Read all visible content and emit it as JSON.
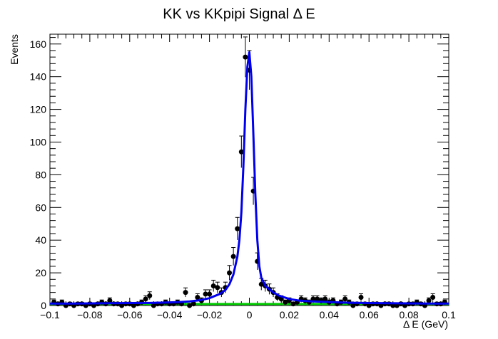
{
  "chart_data": {
    "type": "scatter",
    "title": "KK vs KKpipi Signal Δ E",
    "xlabel": "Δ E (GeV)",
    "ylabel": "Events",
    "xlim": [
      -0.1,
      0.1
    ],
    "ylim": [
      0,
      166
    ],
    "x_ticks": [
      -0.1,
      -0.08,
      -0.06,
      -0.04,
      -0.02,
      0,
      0.02,
      0.04,
      0.06,
      0.08,
      0.1
    ],
    "x_tick_labels": [
      "−0.1",
      "−0.08",
      "−0.06",
      "−0.04",
      "−0.02",
      "0",
      "0.02",
      "0.04",
      "0.06",
      "0.08",
      "0.1"
    ],
    "y_ticks": [
      0,
      20,
      40,
      60,
      80,
      100,
      120,
      140,
      160
    ],
    "y_tick_labels": [
      "0",
      "20",
      "40",
      "60",
      "80",
      "100",
      "120",
      "140",
      "160"
    ],
    "grid": false,
    "series": [
      {
        "kind": "data-points-with-error-bars",
        "color": "#000000",
        "x": [
          -0.098,
          -0.096,
          -0.094,
          -0.092,
          -0.09,
          -0.088,
          -0.086,
          -0.084,
          -0.082,
          -0.08,
          -0.078,
          -0.076,
          -0.074,
          -0.072,
          -0.07,
          -0.068,
          -0.066,
          -0.064,
          -0.062,
          -0.06,
          -0.058,
          -0.056,
          -0.054,
          -0.052,
          -0.05,
          -0.048,
          -0.046,
          -0.044,
          -0.042,
          -0.04,
          -0.038,
          -0.036,
          -0.034,
          -0.032,
          -0.03,
          -0.028,
          -0.026,
          -0.024,
          -0.022,
          -0.02,
          -0.018,
          -0.016,
          -0.014,
          -0.012,
          -0.01,
          -0.008,
          -0.006,
          -0.004,
          -0.002,
          0.0,
          0.002,
          0.004,
          0.006,
          0.008,
          0.01,
          0.012,
          0.014,
          0.016,
          0.018,
          0.02,
          0.022,
          0.024,
          0.026,
          0.028,
          0.03,
          0.032,
          0.034,
          0.036,
          0.038,
          0.04,
          0.042,
          0.044,
          0.046,
          0.048,
          0.05,
          0.052,
          0.054,
          0.056,
          0.058,
          0.06,
          0.062,
          0.064,
          0.066,
          0.068,
          0.07,
          0.072,
          0.074,
          0.076,
          0.078,
          0.08,
          0.082,
          0.084,
          0.086,
          0.088,
          0.09,
          0.092,
          0.094,
          0.096,
          0.098
        ],
        "y": [
          2,
          1,
          2,
          0,
          1,
          0,
          1,
          1,
          0,
          1,
          0,
          1,
          2,
          1,
          3,
          1,
          1,
          0,
          1,
          1,
          0,
          1,
          2,
          4,
          6,
          0,
          1,
          1,
          2,
          1,
          1,
          2,
          1,
          8,
          0,
          1,
          5,
          3,
          7,
          7,
          12,
          11,
          8,
          11,
          20,
          30,
          47,
          94,
          152,
          144,
          70,
          27,
          13,
          12,
          10,
          8,
          5,
          4,
          2,
          3,
          1,
          2,
          4,
          3,
          2,
          4,
          4,
          3,
          4,
          2,
          3,
          1,
          2,
          4,
          2,
          0,
          1,
          5,
          1,
          0,
          1,
          1,
          0,
          1,
          1,
          0,
          0,
          1,
          0,
          1,
          1,
          2,
          1,
          0,
          3,
          5,
          1,
          1,
          2
        ],
        "err": [
          1.4,
          1.0,
          1.4,
          1.0,
          1.0,
          1.0,
          1.0,
          1.0,
          1.0,
          1.0,
          1.0,
          1.0,
          1.4,
          1.0,
          1.7,
          1.0,
          1.0,
          1.0,
          1.0,
          1.0,
          1.0,
          1.0,
          1.4,
          2.0,
          2.4,
          1.0,
          1.0,
          1.0,
          1.4,
          1.0,
          1.0,
          1.4,
          1.0,
          2.8,
          1.0,
          1.0,
          2.2,
          1.7,
          2.6,
          2.6,
          3.5,
          3.3,
          2.8,
          3.3,
          4.5,
          5.5,
          6.9,
          9.7,
          12.3,
          12.0,
          8.4,
          5.2,
          3.6,
          3.5,
          3.2,
          2.8,
          2.2,
          2.0,
          1.4,
          1.7,
          1.0,
          1.4,
          2.0,
          1.7,
          1.4,
          2.0,
          2.0,
          1.7,
          2.0,
          1.4,
          1.7,
          1.0,
          1.4,
          2.0,
          1.4,
          1.0,
          1.0,
          2.2,
          1.0,
          1.0,
          1.0,
          1.0,
          1.0,
          1.0,
          1.0,
          1.0,
          1.0,
          1.0,
          1.0,
          1.0,
          1.0,
          1.4,
          1.0,
          1.0,
          1.7,
          2.2,
          1.0,
          1.0,
          1.4
        ]
      },
      {
        "kind": "fit-total",
        "color": "#0000ee",
        "x": [
          -0.1,
          -0.09,
          -0.08,
          -0.07,
          -0.06,
          -0.05,
          -0.04,
          -0.035,
          -0.03,
          -0.025,
          -0.02,
          -0.015,
          -0.012,
          -0.01,
          -0.008,
          -0.006,
          -0.005,
          -0.004,
          -0.003,
          -0.002,
          -0.001,
          0,
          0.001,
          0.002,
          0.003,
          0.004,
          0.005,
          0.006,
          0.008,
          0.01,
          0.012,
          0.015,
          0.02,
          0.025,
          0.03,
          0.04,
          0.05,
          0.06,
          0.07,
          0.08,
          0.09,
          0.1
        ],
        "y": [
          1.2,
          1.2,
          1.3,
          1.4,
          1.5,
          1.6,
          1.9,
          2.1,
          2.5,
          3.2,
          4.5,
          7,
          9.5,
          13,
          19,
          30,
          40,
          57,
          85,
          120,
          146,
          155,
          140,
          105,
          68,
          40,
          24,
          17,
          12,
          10,
          8,
          6,
          4,
          3,
          2.6,
          2.1,
          1.7,
          1.5,
          1.4,
          1.3,
          1.2,
          1.2
        ]
      },
      {
        "kind": "fit-background",
        "color": "#00c800",
        "x": [
          -0.1,
          0.1
        ],
        "y": [
          0.9,
          0.9
        ]
      }
    ]
  }
}
